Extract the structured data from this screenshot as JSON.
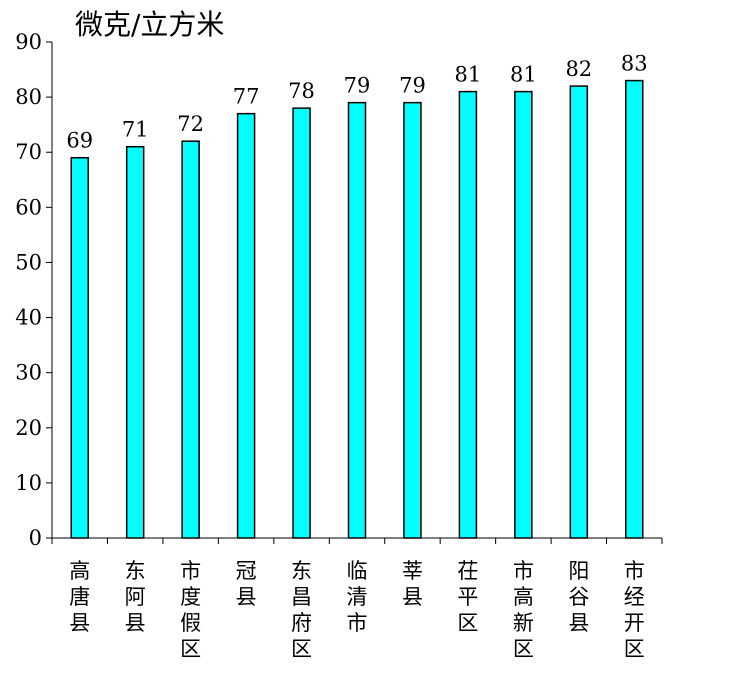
{
  "chart_data": {
    "type": "bar",
    "unit_label": "微克/立方米",
    "categories": [
      "高唐县",
      "东阿县",
      "市度假区",
      "冠县",
      "东昌府区",
      "临清市",
      "莘县",
      "茌平区",
      "市高新区",
      "阳谷县",
      "市经开区"
    ],
    "values": [
      69,
      71,
      72,
      77,
      78,
      79,
      79,
      81,
      81,
      82,
      83
    ],
    "ylim": [
      0,
      90
    ],
    "yticks": [
      0,
      10,
      20,
      30,
      40,
      50,
      60,
      70,
      80,
      90
    ],
    "grid": false,
    "legend": "none",
    "bar_color": "#00FFFF",
    "bar_edge_color": "#000000"
  }
}
